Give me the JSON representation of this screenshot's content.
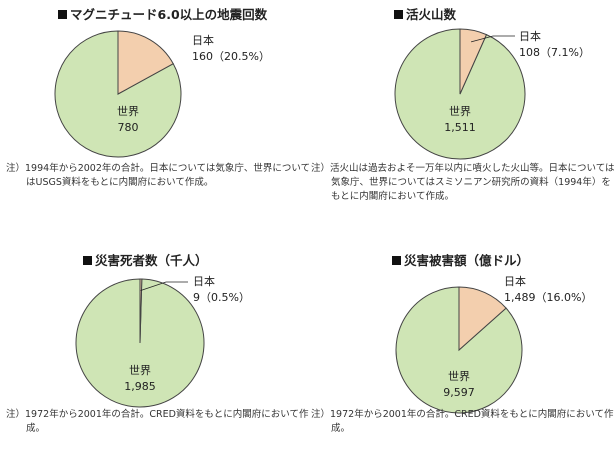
{
  "colors": {
    "japan": "#f3cfae",
    "world": "#cfe5b5",
    "stroke": "#444444"
  },
  "chart_data": [
    {
      "type": "pie",
      "title": "マグニチュード6.0以上の地震回数",
      "slices": [
        {
          "label": "日本",
          "value": 160,
          "value_text": "160（20.5%）"
        },
        {
          "label": "世界",
          "value": 780,
          "value_text": "780"
        }
      ],
      "note_prefix": "注）",
      "note": "1994年から2002年の合計。日本については気象庁、世界についてはUSGS資料をもとに内閣府において作成。"
    },
    {
      "type": "pie",
      "title": "活火山数",
      "slices": [
        {
          "label": "日本",
          "value": 108,
          "value_text": "108（7.1%）"
        },
        {
          "label": "世界",
          "value": 1511,
          "value_text": "1,511"
        }
      ],
      "note_prefix": "注）",
      "note": "活火山は過去およそ一万年以内に噴火した火山等。日本については気象庁、世界についてはスミソニアン研究所の資料（1994年）をもとに内閣府において作成。"
    },
    {
      "type": "pie",
      "title": "災害死者数（千人）",
      "slices": [
        {
          "label": "日本",
          "value": 9,
          "value_text": "9（0.5%）"
        },
        {
          "label": "世界",
          "value": 1985,
          "value_text": "1,985"
        }
      ],
      "note_prefix": "注）",
      "note": "1972年から2001年の合計。CRED資料をもとに内閣府において作成。"
    },
    {
      "type": "pie",
      "title": "災害被害額（億ドル）",
      "slices": [
        {
          "label": "日本",
          "value": 1489,
          "value_text": "1,489（16.0%）"
        },
        {
          "label": "世界",
          "value": 9597,
          "value_text": "9,597"
        }
      ],
      "note_prefix": "注）",
      "note": "1972年から2001年の合計。CRED資料をもとに内閣府において作成。"
    }
  ]
}
